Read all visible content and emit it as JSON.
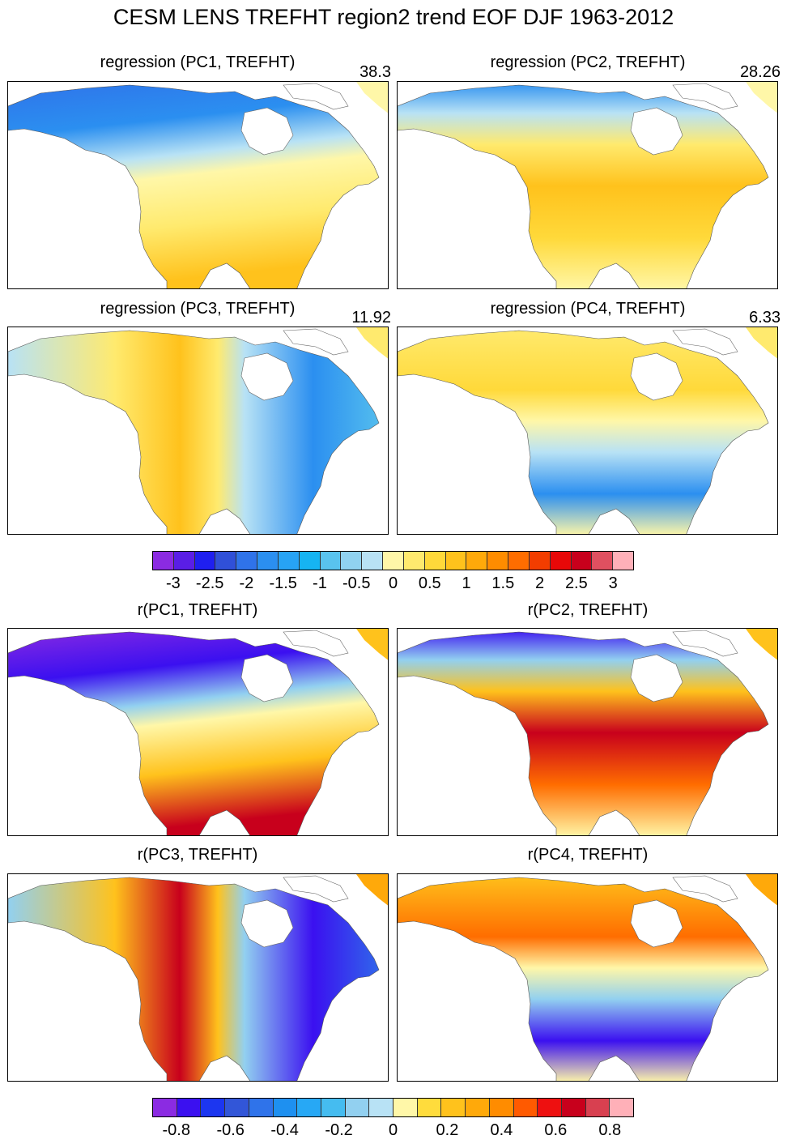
{
  "figure_title": "CESM LENS TREFHT region2 trend EOF DJF 1963-2012",
  "regression_panels": [
    {
      "title": "regression (PC1, TREFHT)",
      "pct": "38.3",
      "pattern": "north-neg"
    },
    {
      "title": "regression (PC2, TREFHT)",
      "pct": "28.26",
      "pattern": "center-pos"
    },
    {
      "title": "regression (PC3, TREFHT)",
      "pct": "11.92",
      "pattern": "west-pos"
    },
    {
      "title": "regression (PC4, TREFHT)",
      "pct": "6.33",
      "pattern": "band-pos"
    }
  ],
  "correlation_panels": [
    {
      "title": "r(PC1, TREFHT)",
      "pattern": "north-neg"
    },
    {
      "title": "r(PC2, TREFHT)",
      "pattern": "center-pos"
    },
    {
      "title": "r(PC3, TREFHT)",
      "pattern": "west-pos"
    },
    {
      "title": "r(PC4, TREFHT)",
      "pattern": "band-pos"
    }
  ],
  "colorbar_regression": {
    "labels": [
      "-3",
      "-2.5",
      "-2",
      "-1.5",
      "-1",
      "-0.5",
      "0",
      "0.5",
      "1",
      "1.5",
      "2",
      "2.5",
      "3"
    ],
    "colors": [
      "#8b2be2",
      "#5a1ee6",
      "#1f1ff0",
      "#3050d8",
      "#2f73ea",
      "#2b8ff0",
      "#27a3f5",
      "#16b4f2",
      "#59c3ee",
      "#90d2f0",
      "#b8e2f5",
      "#fff7a8",
      "#ffea6e",
      "#ffd93a",
      "#ffc21c",
      "#ffa90a",
      "#ff8c00",
      "#ff6d00",
      "#f23d00",
      "#e80808",
      "#c8001c",
      "#e05060",
      "#ffb0b8"
    ]
  },
  "colorbar_correlation": {
    "labels": [
      "-0.8",
      "-0.6",
      "-0.4",
      "-0.2",
      "0",
      "0.2",
      "0.4",
      "0.6",
      "0.8"
    ],
    "colors": [
      "#8b2be2",
      "#3b10f0",
      "#1c36f0",
      "#3256d8",
      "#2f73ea",
      "#1e90f0",
      "#27a8f5",
      "#45bcf0",
      "#92d0f0",
      "#b8e2f5",
      "#fff7a8",
      "#ffdc3c",
      "#ffc21c",
      "#ffa90a",
      "#ff8c00",
      "#ff5a00",
      "#ee1010",
      "#c8001c",
      "#d84050",
      "#ffb0b8"
    ]
  }
}
